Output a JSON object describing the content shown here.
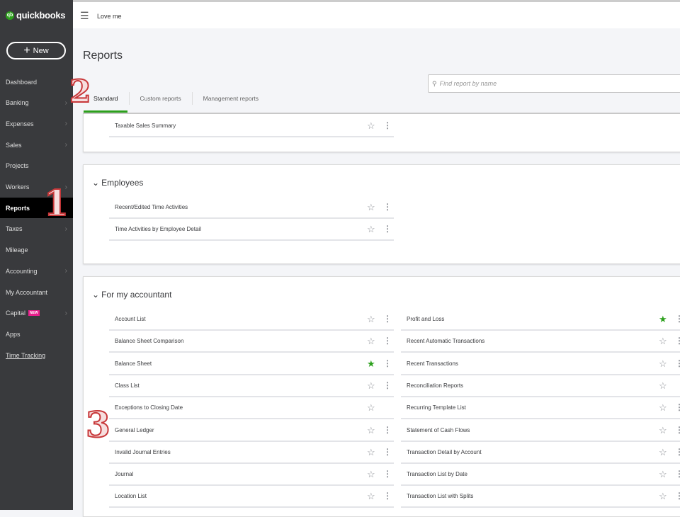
{
  "brand": {
    "logo_small": "intuit",
    "logo": "quickbooks"
  },
  "sidebar": {
    "new_label": "New",
    "items": [
      {
        "label": "Dashboard",
        "chevron": false
      },
      {
        "label": "Banking",
        "chevron": true
      },
      {
        "label": "Expenses",
        "chevron": true
      },
      {
        "label": "Sales",
        "chevron": true
      },
      {
        "label": "Projects",
        "chevron": false
      },
      {
        "label": "Workers",
        "chevron": true
      },
      {
        "label": "Reports",
        "chevron": false,
        "active": true
      },
      {
        "label": "Taxes",
        "chevron": true
      },
      {
        "label": "Mileage",
        "chevron": false
      },
      {
        "label": "Accounting",
        "chevron": true
      },
      {
        "label": "My Accountant",
        "chevron": false
      },
      {
        "label": "Capital",
        "chevron": true,
        "badge": "NEW"
      },
      {
        "label": "Apps",
        "chevron": false
      },
      {
        "label": "Time Tracking",
        "chevron": false,
        "link": true
      }
    ]
  },
  "topbar": {
    "company": "Love me"
  },
  "page": {
    "title": "Reports",
    "search_placeholder": "Find report by name"
  },
  "tabs": [
    {
      "label": "Standard",
      "active": true
    },
    {
      "label": "Custom reports"
    },
    {
      "label": "Management reports"
    }
  ],
  "sections": {
    "partial": {
      "rows": [
        {
          "name": "Taxable Sales Summary",
          "fav": false,
          "menu": true
        }
      ]
    },
    "employees": {
      "title": "Employees",
      "rows": [
        {
          "name": "Recent/Edited Time Activities",
          "fav": false,
          "menu": true
        },
        {
          "name": "Time Activities by Employee Detail",
          "fav": false,
          "menu": true
        }
      ]
    },
    "accountant": {
      "title": "For my accountant",
      "left": [
        {
          "name": "Account List",
          "fav": false,
          "menu": true
        },
        {
          "name": "Balance Sheet Comparison",
          "fav": false,
          "menu": true
        },
        {
          "name": "Balance Sheet",
          "fav": true,
          "menu": true
        },
        {
          "name": "Class List",
          "fav": false,
          "menu": true
        },
        {
          "name": "Exceptions to Closing Date",
          "fav": false,
          "menu": false
        },
        {
          "name": "General Ledger",
          "fav": false,
          "menu": true
        },
        {
          "name": "Invalid Journal Entries",
          "fav": false,
          "menu": true
        },
        {
          "name": "Journal",
          "fav": false,
          "menu": true
        },
        {
          "name": "Location List",
          "fav": false,
          "menu": true
        }
      ],
      "right": [
        {
          "name": "Profit and Loss",
          "fav": true,
          "menu": true
        },
        {
          "name": "Recent Automatic Transactions",
          "fav": false,
          "menu": true
        },
        {
          "name": "Recent Transactions",
          "fav": false,
          "menu": true
        },
        {
          "name": "Reconciliation Reports",
          "fav": false,
          "menu": false
        },
        {
          "name": "Recurring Template List",
          "fav": false,
          "menu": true
        },
        {
          "name": "Statement of Cash Flows",
          "fav": false,
          "menu": true
        },
        {
          "name": "Transaction Detail by Account",
          "fav": false,
          "menu": true
        },
        {
          "name": "Transaction List by Date",
          "fav": false,
          "menu": true
        },
        {
          "name": "Transaction List with Splits",
          "fav": false,
          "menu": true
        }
      ]
    }
  },
  "annotations": [
    "1",
    "2",
    "3"
  ],
  "colors": {
    "sidebar": "#393a3d",
    "accent": "#2ca01c",
    "badge": "#e91e8c"
  }
}
